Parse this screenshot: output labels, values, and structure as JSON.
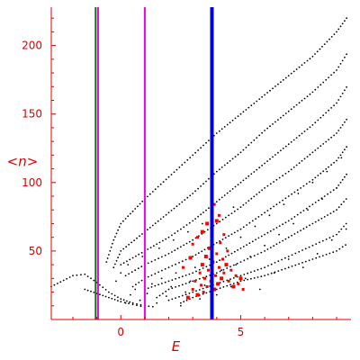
{
  "chart_data": {
    "type": "scatter",
    "title": "",
    "xlabel": "E",
    "ylabel": "<n>",
    "xlim": [
      -2.9,
      9.6
    ],
    "ylim": [
      0,
      228
    ],
    "xticks": [
      0,
      5
    ],
    "yticks": [
      50,
      100,
      150,
      200
    ],
    "grid": false,
    "legend": "none",
    "colors": {
      "axis": "#e00000",
      "black_points": "#000000",
      "red_points": "#ff0000",
      "line_blue": "#0000dd",
      "line_magenta": "#ee00ee",
      "line_green": "#008000"
    },
    "vertical_lines": [
      {
        "x": -1.05,
        "color": "#008000"
      },
      {
        "x": -0.95,
        "color": "#ee00ee"
      },
      {
        "x": 1.0,
        "color": "#ee00ee"
      },
      {
        "x": 3.8,
        "color": "#0000dd"
      }
    ],
    "curves": [
      {
        "x": [
          -2.9,
          -2.0,
          -1.5,
          -1.0,
          -0.5,
          0.0,
          0.5,
          1.0,
          1.5
        ],
        "y": [
          24,
          32,
          33,
          27,
          20,
          15,
          12,
          10,
          9
        ]
      },
      {
        "x": [
          -1.5,
          -1.0,
          -0.5,
          0.0,
          0.5,
          1.0
        ],
        "y": [
          22,
          19,
          16,
          13,
          11,
          9
        ]
      },
      {
        "x": [
          -0.6,
          -0.3,
          0.0,
          1.0,
          2.0,
          3.0,
          4.0,
          5.0,
          6.0,
          7.0,
          8.0,
          9.0,
          9.5
        ],
        "y": [
          42,
          58,
          70,
          88,
          104,
          120,
          136,
          150,
          164,
          178,
          192,
          210,
          222
        ]
      },
      {
        "x": [
          -0.3,
          0.0,
          1.0,
          2.0,
          3.0,
          4.0,
          5.0,
          6.0,
          7.0,
          8.0,
          9.0,
          9.5
        ],
        "y": [
          38,
          50,
          64,
          78,
          92,
          108,
          122,
          138,
          152,
          166,
          182,
          196
        ]
      },
      {
        "x": [
          0.0,
          1.0,
          2.0,
          3.0,
          4.0,
          5.0,
          6.0,
          7.0,
          8.0,
          9.0,
          9.5
        ],
        "y": [
          40,
          50,
          60,
          72,
          86,
          100,
          114,
          128,
          142,
          158,
          172
        ]
      },
      {
        "x": [
          0.2,
          1.0,
          2.0,
          3.0,
          4.0,
          5.0,
          6.0,
          7.0,
          8.0,
          9.0,
          9.5
        ],
        "y": [
          32,
          40,
          48,
          58,
          70,
          82,
          96,
          108,
          122,
          136,
          148
        ]
      },
      {
        "x": [
          0.5,
          1.0,
          2.0,
          3.0,
          4.0,
          5.0,
          6.0,
          7.0,
          8.0,
          9.0,
          9.5
        ],
        "y": [
          24,
          30,
          38,
          46,
          56,
          66,
          78,
          90,
          102,
          116,
          128
        ]
      },
      {
        "x": [
          1.0,
          2.0,
          3.0,
          4.0,
          5.0,
          6.0,
          7.0,
          8.0,
          9.0,
          9.5
        ],
        "y": [
          22,
          28,
          34,
          42,
          52,
          62,
          72,
          84,
          96,
          108
        ]
      },
      {
        "x": [
          1.5,
          2.0,
          3.0,
          4.0,
          5.0,
          6.0,
          7.0,
          8.0,
          9.0,
          9.5
        ],
        "y": [
          16,
          22,
          28,
          34,
          42,
          50,
          60,
          70,
          80,
          90
        ]
      },
      {
        "x": [
          2.0,
          3.0,
          4.0,
          5.0,
          6.0,
          7.0,
          8.0,
          9.0,
          9.5
        ],
        "y": [
          14,
          20,
          26,
          32,
          38,
          46,
          54,
          62,
          72
        ]
      },
      {
        "x": [
          2.5,
          3.0,
          4.0,
          5.0,
          6.0,
          7.0,
          8.0,
          9.0,
          9.5
        ],
        "y": [
          12,
          16,
          22,
          28,
          32,
          38,
          44,
          50,
          56
        ]
      }
    ],
    "black_scatter": [
      [
        0.2,
        12
      ],
      [
        0.4,
        18
      ],
      [
        0.6,
        22
      ],
      [
        0.8,
        14
      ],
      [
        1.1,
        19
      ],
      [
        1.3,
        26
      ],
      [
        1.5,
        12
      ],
      [
        1.7,
        30
      ],
      [
        1.9,
        17
      ],
      [
        2.1,
        24
      ],
      [
        2.3,
        34
      ],
      [
        2.5,
        10
      ],
      [
        2.7,
        20
      ],
      [
        2.9,
        28
      ],
      [
        3.1,
        38
      ],
      [
        3.3,
        15
      ],
      [
        3.5,
        25
      ],
      [
        3.7,
        44
      ],
      [
        4.0,
        18
      ],
      [
        4.2,
        36
      ],
      [
        4.4,
        52
      ],
      [
        4.6,
        24
      ],
      [
        4.8,
        40
      ],
      [
        5.0,
        60
      ],
      [
        5.2,
        30
      ],
      [
        5.4,
        46
      ],
      [
        5.6,
        68
      ],
      [
        5.8,
        22
      ],
      [
        6.0,
        54
      ],
      [
        6.2,
        76
      ],
      [
        6.4,
        34
      ],
      [
        6.6,
        62
      ],
      [
        6.8,
        84
      ],
      [
        7.0,
        44
      ],
      [
        7.2,
        70
      ],
      [
        7.4,
        92
      ],
      [
        7.6,
        38
      ],
      [
        7.8,
        80
      ],
      [
        8.0,
        100
      ],
      [
        8.2,
        48
      ],
      [
        8.4,
        88
      ],
      [
        8.6,
        108
      ],
      [
        8.8,
        58
      ],
      [
        9.0,
        96
      ],
      [
        9.2,
        118
      ],
      [
        9.4,
        66
      ],
      [
        -0.2,
        28
      ],
      [
        0.0,
        34
      ],
      [
        0.3,
        40
      ],
      [
        0.9,
        46
      ],
      [
        1.6,
        52
      ],
      [
        2.2,
        58
      ],
      [
        2.8,
        64
      ],
      [
        3.4,
        70
      ],
      [
        4.1,
        76
      ],
      [
        4.7,
        82
      ]
    ],
    "red_points": [
      [
        2.8,
        16
      ],
      [
        3.0,
        22
      ],
      [
        3.1,
        28
      ],
      [
        3.2,
        18
      ],
      [
        3.3,
        34
      ],
      [
        3.35,
        25
      ],
      [
        3.4,
        40
      ],
      [
        3.45,
        20
      ],
      [
        3.5,
        30
      ],
      [
        3.55,
        46
      ],
      [
        3.6,
        24
      ],
      [
        3.65,
        36
      ],
      [
        3.7,
        52
      ],
      [
        3.75,
        28
      ],
      [
        3.85,
        42
      ],
      [
        3.9,
        22
      ],
      [
        3.95,
        32
      ],
      [
        4.0,
        48
      ],
      [
        4.05,
        26
      ],
      [
        4.1,
        38
      ],
      [
        4.15,
        56
      ],
      [
        4.2,
        30
      ],
      [
        4.25,
        44
      ],
      [
        4.3,
        34
      ],
      [
        4.4,
        40
      ],
      [
        4.5,
        28
      ],
      [
        4.6,
        36
      ],
      [
        4.7,
        24
      ],
      [
        4.8,
        32
      ],
      [
        4.9,
        26
      ],
      [
        5.0,
        30
      ],
      [
        5.1,
        22
      ],
      [
        3.2,
        60
      ],
      [
        3.6,
        70
      ],
      [
        3.9,
        84
      ],
      [
        4.1,
        76
      ],
      [
        3.4,
        64
      ],
      [
        4.3,
        62
      ],
      [
        2.6,
        38
      ],
      [
        2.9,
        45
      ],
      [
        3.0,
        55
      ],
      [
        4.45,
        50
      ],
      [
        4.0,
        72
      ],
      [
        3.8,
        90
      ]
    ]
  }
}
